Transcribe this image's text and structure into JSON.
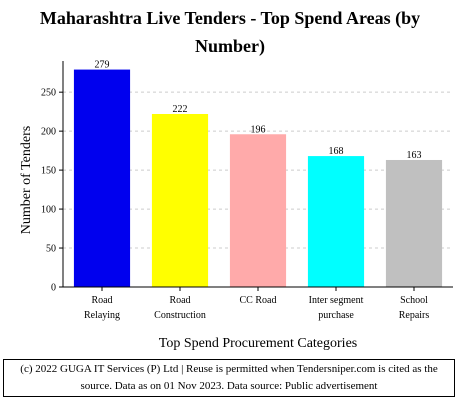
{
  "chart_data": {
    "type": "bar",
    "title_line1": "Maharashtra Live Tenders - Top Spend Areas (by",
    "title_line2": "Number)",
    "xlabel": "Top Spend Procurement Categories",
    "ylabel": "Number of Tenders",
    "categories": [
      [
        "Road",
        "Relaying"
      ],
      [
        "Road",
        "Construction"
      ],
      [
        "CC Road"
      ],
      [
        "Inter segment",
        "purchase"
      ],
      [
        "School",
        "Repairs"
      ]
    ],
    "values": [
      279,
      222,
      196,
      168,
      163
    ],
    "colors": [
      "#0000ee",
      "#ffff00",
      "#ffaaaa",
      "#00ffff",
      "#c0c0c0"
    ],
    "ylim": [
      0,
      290
    ],
    "yticks": [
      0,
      50,
      100,
      150,
      200,
      250
    ],
    "grid": true
  },
  "footer": {
    "line1": "(c) 2022 GUGA IT Services (P) Ltd | Reuse is permitted when Tendersniper.com is cited as the",
    "line2": "source. Data as on 01 Nov 2023. Data source: Public advertisement"
  }
}
